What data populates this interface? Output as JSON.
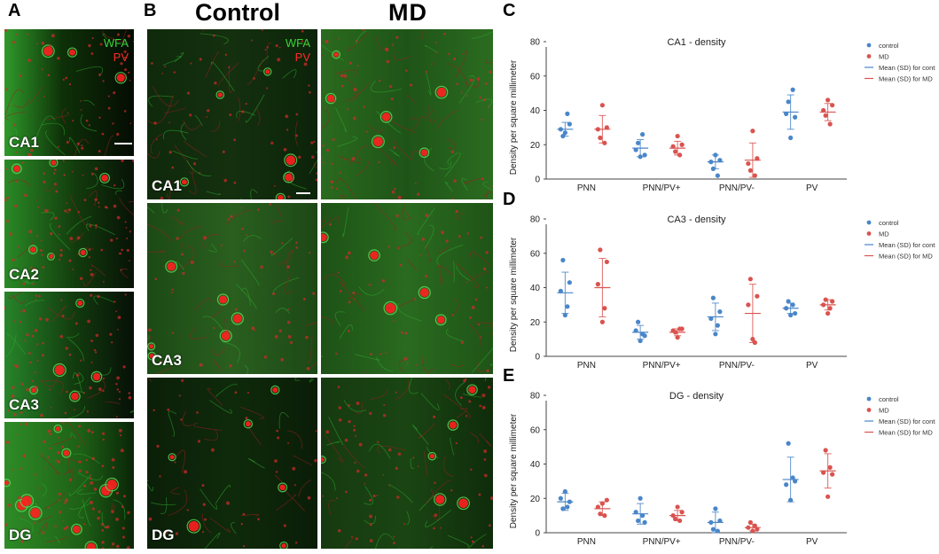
{
  "panels": {
    "a": {
      "letter": "A",
      "regions": [
        "CA1",
        "CA2",
        "CA3",
        "DG"
      ],
      "stain_labels": {
        "wfa": "WFA",
        "pv": "PV"
      }
    },
    "b": {
      "letter": "B",
      "headers": {
        "control": "Control",
        "md": "MD"
      },
      "regions": [
        "CA1",
        "CA3",
        "DG"
      ],
      "stain_labels": {
        "wfa": "WFA",
        "pv": "PV"
      }
    },
    "c": {
      "letter": "C"
    },
    "d": {
      "letter": "D"
    },
    "e": {
      "letter": "E"
    }
  },
  "colors": {
    "control": "#4a86c8",
    "md": "#d9534f",
    "wfa": "#3bd23b",
    "pv": "#ff2a2a"
  },
  "chart_data": [
    {
      "type": "scatter",
      "title": "CA1 - density",
      "ylabel": "Density per square millimeter",
      "xlabel": "",
      "categories": [
        "PNN",
        "PNN/PV+",
        "PNN/PV-",
        "PV"
      ],
      "ylim": [
        0,
        80
      ],
      "yticks": [
        0,
        20,
        40,
        60,
        80
      ],
      "legend": [
        "control",
        "MD",
        "Mean (SD) for control",
        "Mean (SD) for MD"
      ],
      "legend_position": "right",
      "series": [
        {
          "name": "control",
          "points": [
            [
              29,
              25,
              27,
              38,
              32
            ],
            [
              17,
              21,
              13,
              26,
              14
            ],
            [
              10,
              6,
              14,
              2,
              11
            ],
            [
              38,
              45,
              24,
              52,
              36
            ]
          ],
          "mean": [
            29,
            18,
            10,
            39
          ],
          "sd": [
            4,
            5,
            4,
            10
          ]
        },
        {
          "name": "MD",
          "points": [
            [
              29,
              24,
              43,
              21,
              30
            ],
            [
              19,
              16,
              25,
              14,
              20
            ],
            [
              9,
              5,
              28,
              2,
              12
            ],
            [
              40,
              37,
              46,
              32,
              43
            ]
          ],
          "mean": [
            29,
            18,
            11,
            39
          ],
          "sd": [
            8,
            4,
            10,
            5
          ]
        }
      ]
    },
    {
      "type": "scatter",
      "title": "CA3 - density",
      "ylabel": "Density per square millimeter",
      "xlabel": "",
      "categories": [
        "PNN",
        "PNN/PV+",
        "PNN/PV-",
        "PV"
      ],
      "ylim": [
        0,
        80
      ],
      "yticks": [
        0,
        20,
        40,
        60,
        80
      ],
      "legend": [
        "control",
        "MD",
        "Mean (SD) for control",
        "Mean (SD) for MD"
      ],
      "legend_position": "right",
      "series": [
        {
          "name": "control",
          "points": [
            [
              38,
              56,
              24,
              29,
              43
            ],
            [
              15,
              20,
              9,
              13,
              12
            ],
            [
              22,
              34,
              13,
              18,
              26
            ],
            [
              28,
              32,
              24,
              30,
              25
            ]
          ],
          "mean": [
            37,
            14,
            23,
            28
          ],
          "sd": [
            12,
            4,
            8,
            3
          ]
        },
        {
          "name": "MD",
          "points": [
            [
              42,
              62,
              20,
              28,
              55
            ],
            [
              15,
              14,
              11,
              16,
              16
            ],
            [
              30,
              45,
              10,
              8,
              35
            ],
            [
              30,
              33,
              25,
              28,
              32
            ]
          ],
          "mean": [
            40,
            14,
            25,
            30
          ],
          "sd": [
            17,
            2,
            17,
            3
          ]
        }
      ]
    },
    {
      "type": "scatter",
      "title": "DG - density",
      "ylabel": "Density per square millimeter",
      "xlabel": "",
      "categories": [
        "PNN",
        "PNN/PV+",
        "PNN/PV-",
        "PV"
      ],
      "ylim": [
        0,
        80
      ],
      "yticks": [
        0,
        20,
        40,
        60,
        80
      ],
      "legend": [
        "control",
        "MD",
        "Mean (SD) for control",
        "Mean (SD) for MD"
      ],
      "legend_position": "right",
      "series": [
        {
          "name": "control",
          "points": [
            [
              20,
              14,
              24,
              15,
              18
            ],
            [
              12,
              7,
              20,
              10,
              6
            ],
            [
              6,
              2,
              14,
              1,
              7
            ],
            [
              28,
              52,
              19,
              32,
              30
            ]
          ],
          "mean": [
            18,
            11,
            6,
            31
          ],
          "sd": [
            5,
            6,
            6,
            13
          ]
        },
        {
          "name": "MD",
          "points": [
            [
              15,
              11,
              17,
              10,
              19
            ],
            [
              10,
              8,
              15,
              7,
              12
            ],
            [
              3,
              6,
              1,
              4,
              2
            ],
            [
              35,
              48,
              21,
              38,
              34
            ]
          ],
          "mean": [
            14,
            10,
            3,
            36
          ],
          "sd": [
            4,
            3,
            2,
            10
          ]
        }
      ]
    }
  ]
}
